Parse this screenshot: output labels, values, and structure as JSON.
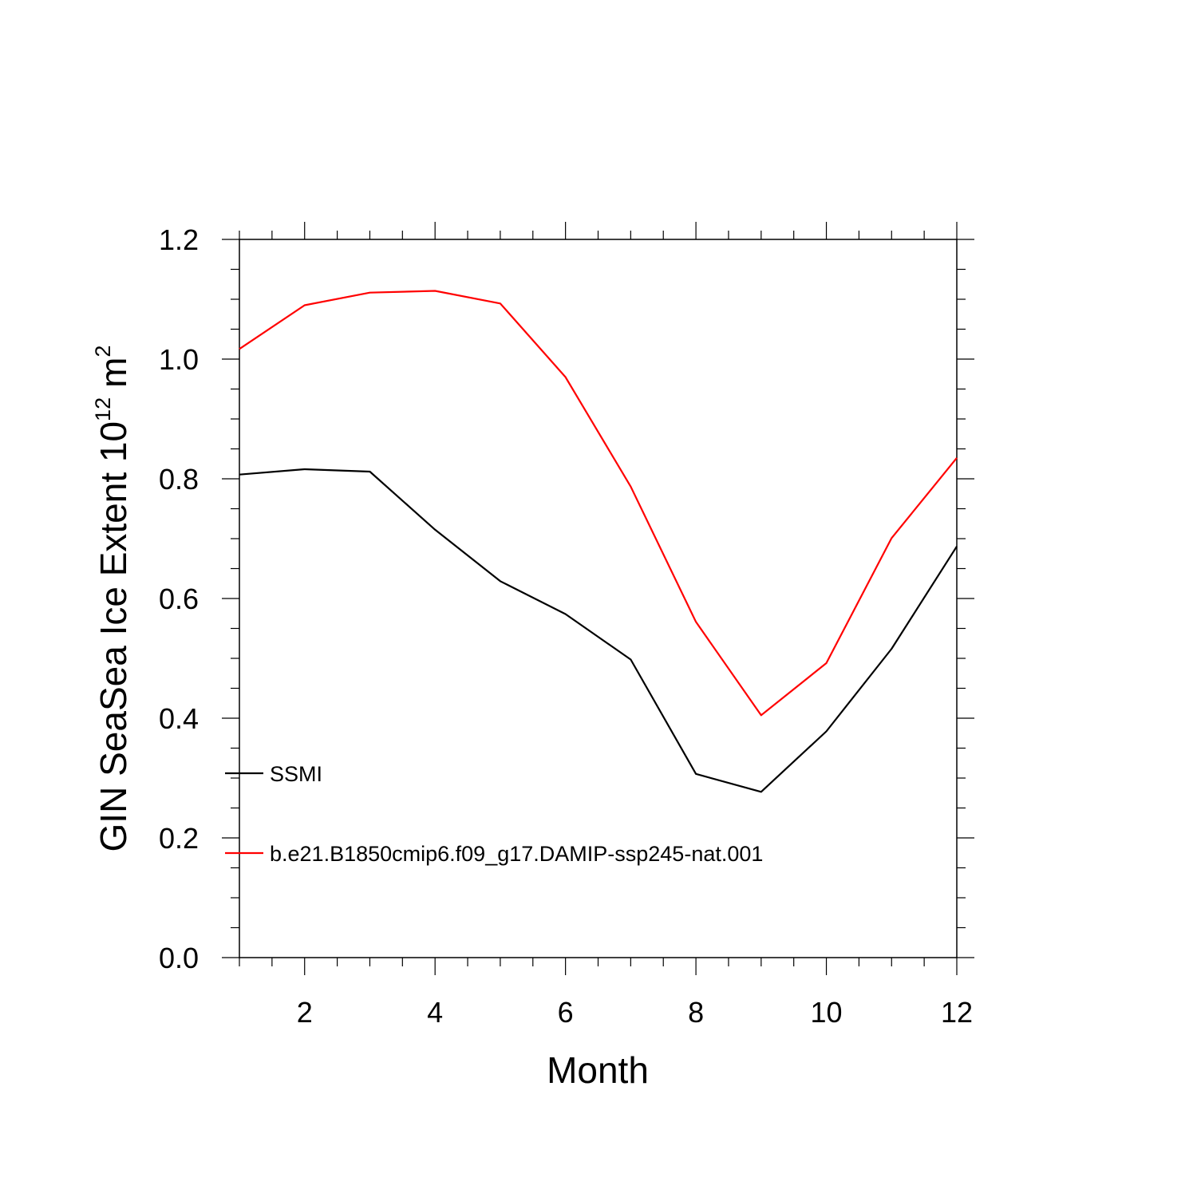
{
  "chart_data": {
    "type": "line",
    "title": "",
    "xlabel": "Month",
    "ylabel": {
      "prefix": "GIN SeaSea Ice Extent 10",
      "exponent": "12",
      "unit": "m",
      "unit_exponent": "2"
    },
    "xlim": [
      1,
      12
    ],
    "ylim": [
      0.0,
      1.2
    ],
    "x_ticks": [
      2,
      4,
      6,
      8,
      10,
      12
    ],
    "x_tick_labels": [
      "2",
      "4",
      "6",
      "8",
      "10",
      "12"
    ],
    "y_ticks": [
      0.0,
      0.2,
      0.4,
      0.6,
      0.8,
      1.0,
      1.2
    ],
    "y_tick_labels": [
      "0.0",
      "0.2",
      "0.4",
      "0.6",
      "0.8",
      "1.0",
      "1.2"
    ],
    "grid": false,
    "legend_position": "lower-left",
    "x": [
      1,
      2,
      3,
      4,
      5,
      6,
      7,
      8,
      9,
      10,
      11,
      12
    ],
    "series": [
      {
        "name": "SSMI",
        "color": "#000000",
        "values": [
          0.807,
          0.816,
          0.812,
          0.715,
          0.629,
          0.574,
          0.498,
          0.307,
          0.277,
          0.378,
          0.516,
          0.687
        ]
      },
      {
        "name": "b.e21.B1850cmip6.f09_g17.DAMIP-ssp245-nat.001",
        "color": "#ff0000",
        "values": [
          1.017,
          1.09,
          1.111,
          1.114,
          1.093,
          0.97,
          0.787,
          0.561,
          0.405,
          0.492,
          0.701,
          0.835
        ]
      }
    ]
  }
}
